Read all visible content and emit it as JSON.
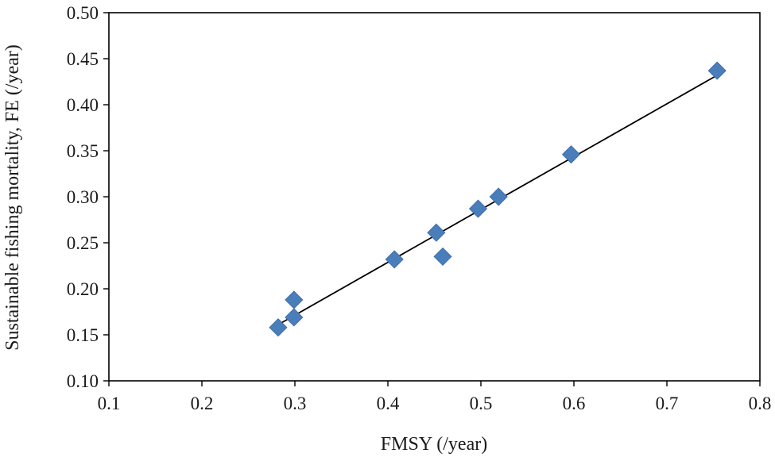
{
  "chart_data": {
    "type": "scatter",
    "title": "",
    "xlabel": "FMSY (/year)",
    "ylabel": "Sustainable fishing mortality, FE (/year)",
    "xlim": [
      0.1,
      0.8
    ],
    "ylim": [
      0.1,
      0.5
    ],
    "xticks": [
      0.1,
      0.2,
      0.3,
      0.4,
      0.5,
      0.6,
      0.7,
      0.8
    ],
    "xtick_labels": [
      "0.1",
      "0.2",
      "0.3",
      "0.4",
      "0.5",
      "0.6",
      "0.7",
      "0.8"
    ],
    "yticks": [
      0.1,
      0.15,
      0.2,
      0.25,
      0.3,
      0.35,
      0.4,
      0.45,
      0.5
    ],
    "ytick_labels": [
      "0.10",
      "0.15",
      "0.20",
      "0.25",
      "0.30",
      "0.35",
      "0.40",
      "0.45",
      "0.50"
    ],
    "grid": false,
    "legend": "none",
    "marker": "diamond",
    "marker_color": "#4a7ebb",
    "series": [
      {
        "points": [
          {
            "x": 0.282,
            "y": 0.158
          },
          {
            "x": 0.299,
            "y": 0.169
          },
          {
            "x": 0.299,
            "y": 0.188
          },
          {
            "x": 0.407,
            "y": 0.232
          },
          {
            "x": 0.452,
            "y": 0.261
          },
          {
            "x": 0.459,
            "y": 0.235
          },
          {
            "x": 0.497,
            "y": 0.287
          },
          {
            "x": 0.519,
            "y": 0.3
          },
          {
            "x": 0.597,
            "y": 0.346
          },
          {
            "x": 0.754,
            "y": 0.437
          }
        ]
      }
    ],
    "trendline": {
      "type": "linear",
      "color": "#000000",
      "x_start": 0.282,
      "y_start": 0.161,
      "x_end": 0.754,
      "y_end": 0.432
    }
  }
}
